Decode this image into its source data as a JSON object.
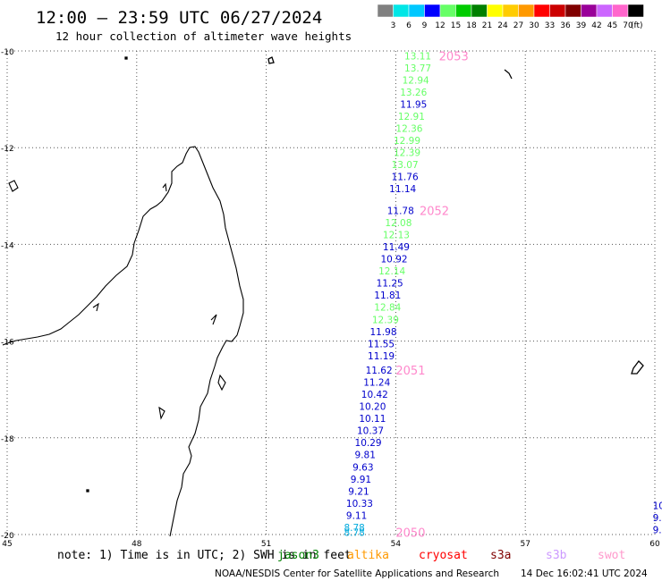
{
  "header": {
    "title": "12:00 – 23:59 UTC 06/27/2024",
    "subtitle": "12 hour collection of altimeter wave heights"
  },
  "legend": {
    "colors": [
      "#808080",
      "#00e6e6",
      "#00c8ff",
      "#0000ff",
      "#66ff66",
      "#00cc00",
      "#008000",
      "#ffff00",
      "#ffcc00",
      "#ff9900",
      "#ff0000",
      "#cc0000",
      "#800000",
      "#990099",
      "#cc66ff",
      "#ff66cc",
      "#000000"
    ],
    "labels": [
      "3",
      "6",
      "9",
      "12",
      "15",
      "18",
      "21",
      "24",
      "27",
      "30",
      "33",
      "36",
      "39",
      "42",
      "45",
      "70"
    ],
    "unit": "(ft)"
  },
  "map": {
    "lat_labels": [
      "-10",
      "-12",
      "-14",
      "-16",
      "-18",
      "-20"
    ],
    "lon_labels": [
      "45",
      "48",
      "51",
      "54",
      "57",
      "60"
    ],
    "lon_min": 45,
    "lon_max": 60,
    "lat_min": -20,
    "lat_max": -10
  },
  "track_labels": [
    {
      "text": "2053",
      "lon": 55.0,
      "lat": -10.1
    },
    {
      "text": "2052",
      "lon": 54.55,
      "lat": -13.3
    },
    {
      "text": "2051",
      "lon": 54.0,
      "lat": -16.6
    },
    {
      "text": "2050",
      "lon": 54.0,
      "lat": -19.95
    }
  ],
  "points": [
    {
      "v": "13.11",
      "lat": -10.1,
      "lon": 54.2,
      "c": "#66ff66"
    },
    {
      "v": "13.77",
      "lat": -10.35,
      "lon": 54.2,
      "c": "#66ff66"
    },
    {
      "v": "12.94",
      "lat": -10.6,
      "lon": 54.15,
      "c": "#66ff66"
    },
    {
      "v": "13.26",
      "lat": -10.85,
      "lon": 54.1,
      "c": "#66ff66"
    },
    {
      "v": "11.95",
      "lat": -11.1,
      "lon": 54.1,
      "c": "#0000cc"
    },
    {
      "v": "12.91",
      "lat": -11.35,
      "lon": 54.05,
      "c": "#66ff66"
    },
    {
      "v": "12.36",
      "lat": -11.6,
      "lon": 54.0,
      "c": "#66ff66"
    },
    {
      "v": "12.99",
      "lat": -11.85,
      "lon": 53.95,
      "c": "#66ff66"
    },
    {
      "v": "12.39",
      "lat": -12.1,
      "lon": 53.95,
      "c": "#66ff66"
    },
    {
      "v": "13.07",
      "lat": -12.35,
      "lon": 53.9,
      "c": "#66ff66"
    },
    {
      "v": "11.76",
      "lat": -12.6,
      "lon": 53.9,
      "c": "#0000cc"
    },
    {
      "v": "11.14",
      "lat": -12.85,
      "lon": 53.85,
      "c": "#0000cc"
    },
    {
      "v": "11.78",
      "lat": -13.3,
      "lon": 53.8,
      "c": "#0000cc"
    },
    {
      "v": "12.08",
      "lat": -13.55,
      "lon": 53.75,
      "c": "#66ff66"
    },
    {
      "v": "12.13",
      "lat": -13.8,
      "lon": 53.7,
      "c": "#66ff66"
    },
    {
      "v": "11.49",
      "lat": -14.05,
      "lon": 53.7,
      "c": "#0000cc"
    },
    {
      "v": "10.92",
      "lat": -14.3,
      "lon": 53.65,
      "c": "#0000cc"
    },
    {
      "v": "12.14",
      "lat": -14.55,
      "lon": 53.6,
      "c": "#66ff66"
    },
    {
      "v": "11.25",
      "lat": -14.8,
      "lon": 53.55,
      "c": "#0000cc"
    },
    {
      "v": "11.81",
      "lat": -15.05,
      "lon": 53.5,
      "c": "#0000cc"
    },
    {
      "v": "12.84",
      "lat": -15.3,
      "lon": 53.5,
      "c": "#66ff66"
    },
    {
      "v": "12.39",
      "lat": -15.55,
      "lon": 53.45,
      "c": "#66ff66"
    },
    {
      "v": "11.98",
      "lat": -15.8,
      "lon": 53.4,
      "c": "#0000cc"
    },
    {
      "v": "11.55",
      "lat": -16.05,
      "lon": 53.35,
      "c": "#0000cc"
    },
    {
      "v": "11.19",
      "lat": -16.3,
      "lon": 53.35,
      "c": "#0000cc"
    },
    {
      "v": "11.62",
      "lat": -16.6,
      "lon": 53.3,
      "c": "#0000cc"
    },
    {
      "v": "11.24",
      "lat": -16.85,
      "lon": 53.25,
      "c": "#0000cc"
    },
    {
      "v": "10.42",
      "lat": -17.1,
      "lon": 53.2,
      "c": "#0000cc"
    },
    {
      "v": "10.20",
      "lat": -17.35,
      "lon": 53.15,
      "c": "#0000cc"
    },
    {
      "v": "10.11",
      "lat": -17.6,
      "lon": 53.15,
      "c": "#0000cc"
    },
    {
      "v": "10.37",
      "lat": -17.85,
      "lon": 53.1,
      "c": "#0000cc"
    },
    {
      "v": "10.29",
      "lat": -18.1,
      "lon": 53.05,
      "c": "#0000cc"
    },
    {
      "v": "9.81",
      "lat": -18.35,
      "lon": 53.05,
      "c": "#0000cc"
    },
    {
      "v": "9.63",
      "lat": -18.6,
      "lon": 53.0,
      "c": "#0000cc"
    },
    {
      "v": "9.91",
      "lat": -18.85,
      "lon": 52.95,
      "c": "#0000cc"
    },
    {
      "v": "9.21",
      "lat": -19.1,
      "lon": 52.9,
      "c": "#0000cc"
    },
    {
      "v": "10.33",
      "lat": -19.35,
      "lon": 52.85,
      "c": "#0000cc"
    },
    {
      "v": "9.11",
      "lat": -19.6,
      "lon": 52.85,
      "c": "#0000cc"
    },
    {
      "v": "8.78",
      "lat": -19.85,
      "lon": 52.8,
      "c": "#00aadd"
    },
    {
      "v": "8.78",
      "lat": -19.95,
      "lon": 52.8,
      "c": "#00aadd"
    },
    {
      "v": "10",
      "lat": -19.4,
      "lon": 59.95,
      "c": "#0000cc"
    },
    {
      "v": "9.",
      "lat": -19.65,
      "lon": 59.95,
      "c": "#0000cc"
    },
    {
      "v": "9.",
      "lat": -19.9,
      "lon": 59.95,
      "c": "#0000cc"
    }
  ],
  "footer": {
    "note": "note:  1) Time is in UTC; 2) SWH is in feet",
    "satellites": [
      {
        "name": "jason3",
        "color": "#008000"
      },
      {
        "name": "altika",
        "color": "#ff9900"
      },
      {
        "name": "cryosat",
        "color": "#ff0000"
      },
      {
        "name": "s3a",
        "color": "#800000"
      },
      {
        "name": "s3b",
        "color": "#cc99ff"
      },
      {
        "name": "swot",
        "color": "#ff99cc"
      }
    ],
    "credit": "NOAA/NESDIS Center for Satellite Applications and Research",
    "timestamp": "14 Dec 16:02:41 UTC 2024"
  }
}
